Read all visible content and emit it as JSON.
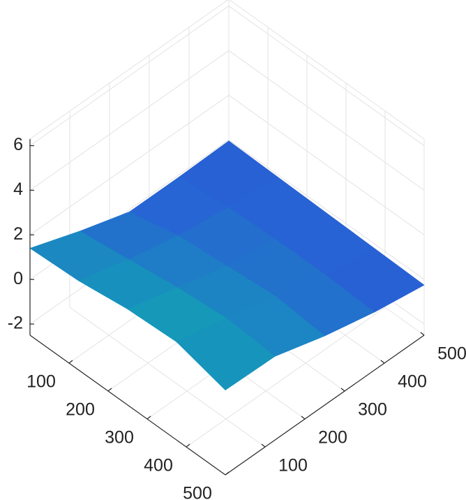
{
  "chart_data": {
    "type": "surface",
    "x": [
      0,
      125,
      250,
      375,
      500
    ],
    "y": [
      0,
      125,
      250,
      375,
      500
    ],
    "z": [
      [
        1.4,
        0.6,
        -0.1,
        -0.1,
        -0.05
      ],
      [
        1.5,
        0.9,
        0.4,
        0.1,
        -0.1
      ],
      [
        1.8,
        1.2,
        0.6,
        0.2,
        -0.15
      ],
      [
        1.9,
        1.4,
        0.8,
        0.2,
        -0.2
      ],
      [
        1.3,
        1.25,
        0.6,
        0.1,
        -0.25
      ]
    ],
    "xlim": [
      0,
      500
    ],
    "ylim": [
      0,
      500
    ],
    "zlim": [
      -2.5,
      6.3
    ],
    "xticks": [
      100,
      200,
      300,
      400,
      500
    ],
    "yticks": [
      100,
      200,
      300,
      400,
      500
    ],
    "zticks": [
      -2,
      0,
      2,
      4,
      6
    ],
    "grid": true,
    "colormap": [
      "#2a5ad8",
      "#12a3b4"
    ]
  }
}
